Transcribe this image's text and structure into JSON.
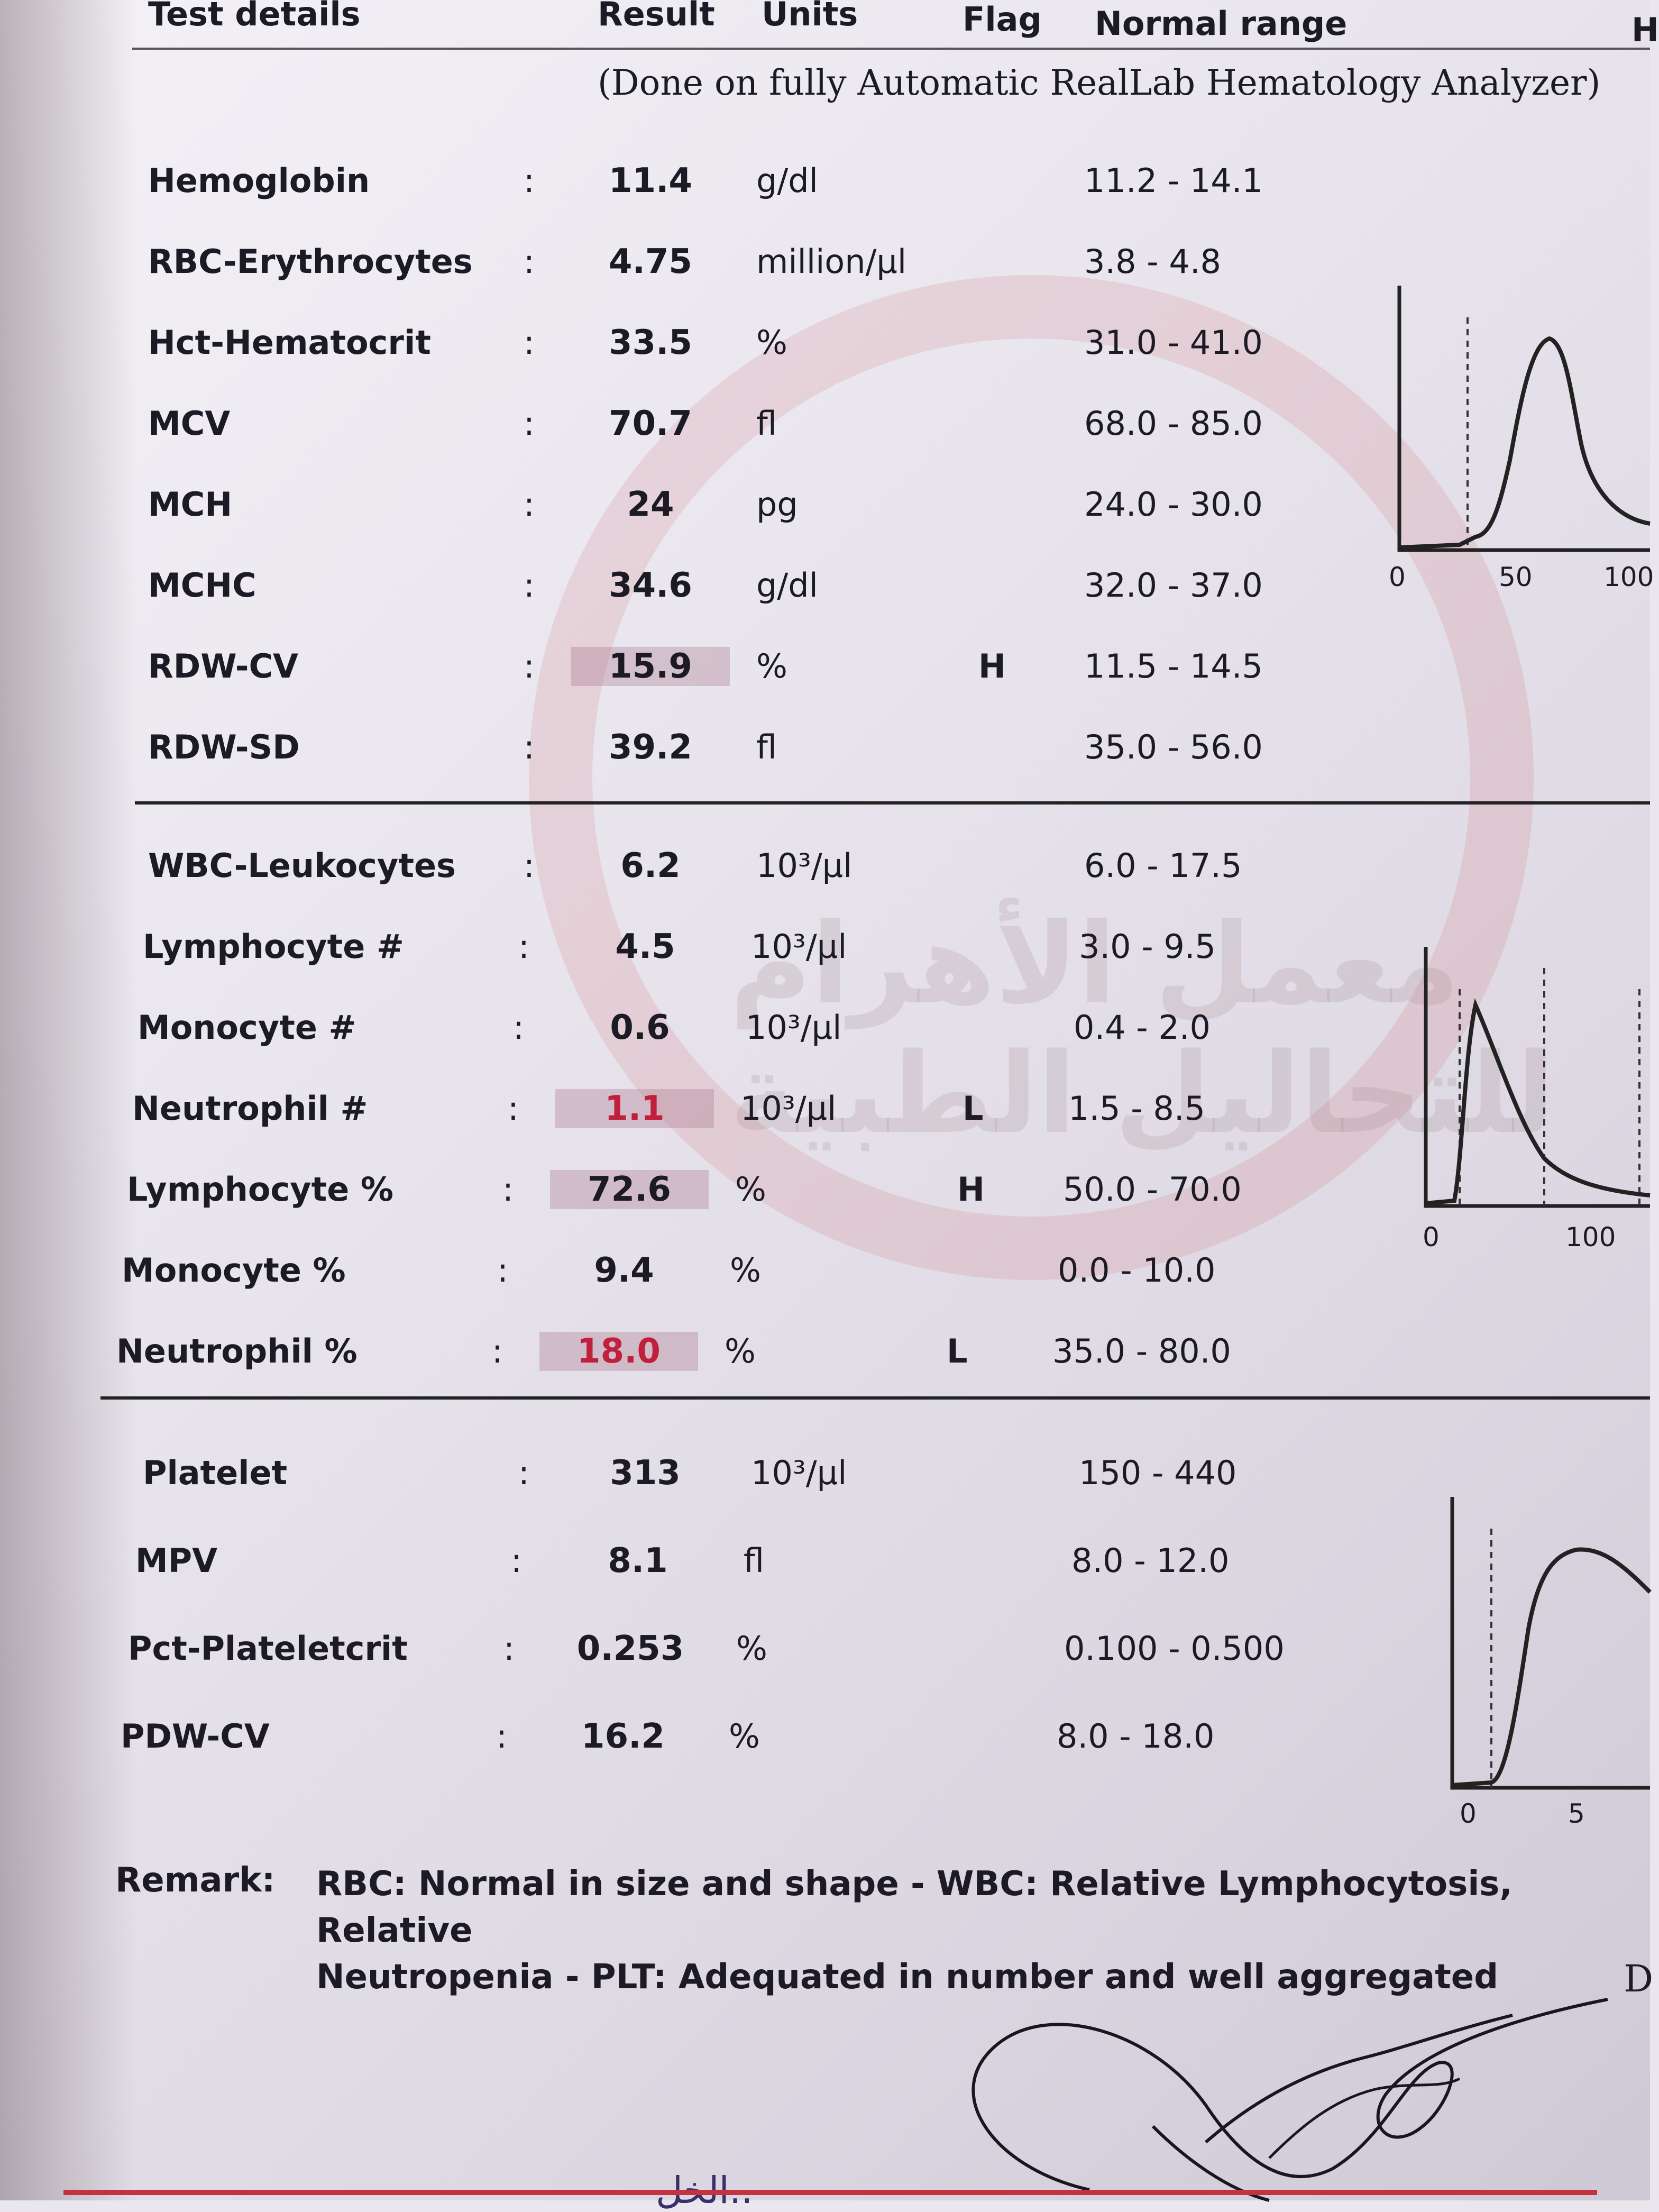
{
  "header": {
    "test_details": "Test details",
    "result": "Result",
    "units": "Units",
    "flag": "Flag",
    "normal_range": "Normal range",
    "edge_mark": "H"
  },
  "subtitle": "(Done on fully Automatic RealLab Hematology Analyzer)",
  "rbc_section": [
    {
      "name": "Hemoglobin",
      "result": "11.4",
      "unit": "g/dl",
      "flag": "",
      "range": "11.2 - 14.1"
    },
    {
      "name": "RBC-Erythrocytes",
      "result": "4.75",
      "unit": "million/µl",
      "flag": "",
      "range": "3.8 - 4.8"
    },
    {
      "name": "Hct-Hematocrit",
      "result": "33.5",
      "unit": "%",
      "flag": "",
      "range": "31.0 - 41.0"
    },
    {
      "name": "MCV",
      "result": "70.7",
      "unit": "fl",
      "flag": "",
      "range": "68.0 - 85.0"
    },
    {
      "name": "MCH",
      "result": "24",
      "unit": "pg",
      "flag": "",
      "range": "24.0 - 30.0"
    },
    {
      "name": "MCHC",
      "result": "34.6",
      "unit": "g/dl",
      "flag": "",
      "range": "32.0 - 37.0"
    },
    {
      "name": "RDW-CV",
      "result": "15.9",
      "unit": "%",
      "flag": "H",
      "range": "11.5 - 14.5"
    },
    {
      "name": "RDW-SD",
      "result": "39.2",
      "unit": "fl",
      "flag": "",
      "range": "35.0 - 56.0"
    }
  ],
  "wbc_section": [
    {
      "name": "WBC-Leukocytes",
      "result": "6.2",
      "unit": "10³/µl",
      "flag": "",
      "range": "6.0 - 17.5"
    },
    {
      "name": "Lymphocyte #",
      "result": "4.5",
      "unit": "10³/µl",
      "flag": "",
      "range": "3.0 - 9.5"
    },
    {
      "name": "Monocyte #",
      "result": "0.6",
      "unit": "10³/µl",
      "flag": "",
      "range": "0.4 - 2.0"
    },
    {
      "name": "Neutrophil #",
      "result": "1.1",
      "unit": "10³/µl",
      "flag": "L",
      "range": "1.5 - 8.5"
    },
    {
      "name": "Lymphocyte %",
      "result": "72.6",
      "unit": "%",
      "flag": "H",
      "range": "50.0 - 70.0"
    },
    {
      "name": "Monocyte %",
      "result": "9.4",
      "unit": "%",
      "flag": "",
      "range": "0.0 - 10.0"
    },
    {
      "name": "Neutrophil %",
      "result": "18.0",
      "unit": "%",
      "flag": "L",
      "range": "35.0 - 80.0"
    }
  ],
  "plt_section": [
    {
      "name": "Platelet",
      "result": "313",
      "unit": "10³/µl",
      "flag": "",
      "range": "150 - 440"
    },
    {
      "name": "MPV",
      "result": "8.1",
      "unit": "fl",
      "flag": "",
      "range": "8.0 - 12.0"
    },
    {
      "name": "Pct-Plateletcrit",
      "result": "0.253",
      "unit": "%",
      "flag": "",
      "range": "0.100 - 0.500"
    },
    {
      "name": "PDW-CV",
      "result": "16.2",
      "unit": "%",
      "flag": "",
      "range": "8.0 - 18.0"
    }
  ],
  "histograms": {
    "rbc": {
      "ticks": [
        "0",
        "50",
        "100"
      ]
    },
    "wbc": {
      "ticks": [
        "0",
        "100"
      ]
    },
    "plt": {
      "ticks": [
        "0",
        "5"
      ]
    }
  },
  "remark": {
    "label": "Remark:",
    "line1": "RBC: Normal in size and shape - WBC: Relative Lymphocytosis, Relative",
    "line2": "Neutropenia - PLT: Adequated in number and well aggregated"
  },
  "watermark_text": "معمل الأهرام للتحاليل الطبية",
  "corner_letter": "D",
  "bottom_text": "الخل..",
  "colors": {
    "abnormal_red": "#c0203c",
    "highlight": "#aa788c",
    "brand_red": "#c23240"
  }
}
